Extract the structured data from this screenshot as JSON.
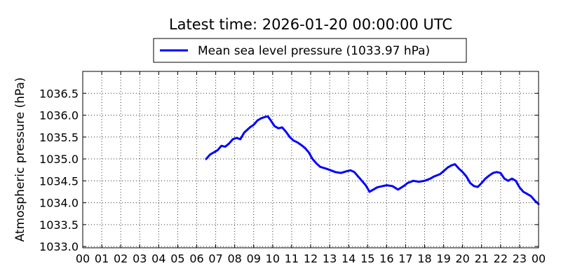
{
  "chart_data": {
    "type": "line",
    "title": "Latest time: 2026-01-20 00:00:00 UTC",
    "xlabel": "",
    "ylabel": "Atmospheric pressure (hPa)",
    "xlim": [
      0,
      24
    ],
    "ylim": [
      1032.97,
      1037.0
    ],
    "grid": true,
    "legend": {
      "placement": "top-center",
      "entries": [
        "Mean sea level pressure (1033.97 hPa)"
      ]
    },
    "x_tick_labels": [
      "00",
      "01",
      "02",
      "03",
      "04",
      "05",
      "06",
      "07",
      "08",
      "09",
      "10",
      "11",
      "12",
      "13",
      "14",
      "15",
      "16",
      "17",
      "18",
      "19",
      "20",
      "21",
      "22",
      "23",
      "00"
    ],
    "y_ticks": [
      1033.0,
      1033.5,
      1034.0,
      1034.5,
      1035.0,
      1035.5,
      1036.0,
      1036.5
    ],
    "y_tick_labels": [
      "1033.0",
      "1033.5",
      "1034.0",
      "1034.5",
      "1035.0",
      "1035.5",
      "1036.0",
      "1036.5"
    ],
    "series": [
      {
        "name": "Mean sea level pressure (1033.97 hPa)",
        "color": "#0000ff",
        "x": [
          6.5,
          6.7,
          6.9,
          7.1,
          7.3,
          7.5,
          7.7,
          7.9,
          8.1,
          8.3,
          8.5,
          8.8,
          9.0,
          9.2,
          9.4,
          9.6,
          9.75,
          9.9,
          10.1,
          10.3,
          10.5,
          10.7,
          10.9,
          11.1,
          11.3,
          11.5,
          11.7,
          11.9,
          12.1,
          12.3,
          12.5,
          12.8,
          13.0,
          13.3,
          13.6,
          13.9,
          14.1,
          14.3,
          14.5,
          14.7,
          14.9,
          15.1,
          15.3,
          15.5,
          15.8,
          16.0,
          16.3,
          16.6,
          16.9,
          17.1,
          17.4,
          17.7,
          18.0,
          18.3,
          18.5,
          18.8,
          19.0,
          19.2,
          19.4,
          19.6,
          19.8,
          20.0,
          20.2,
          20.4,
          20.6,
          20.8,
          21.0,
          21.2,
          21.4,
          21.6,
          21.8,
          22.0,
          22.2,
          22.4,
          22.6,
          22.8,
          23.0,
          23.2,
          23.4,
          23.6,
          23.8,
          24.0
        ],
        "y": [
          1035.0,
          1035.1,
          1035.15,
          1035.2,
          1035.3,
          1035.28,
          1035.35,
          1035.45,
          1035.48,
          1035.45,
          1035.6,
          1035.72,
          1035.78,
          1035.88,
          1035.93,
          1035.96,
          1035.97,
          1035.88,
          1035.75,
          1035.7,
          1035.72,
          1035.62,
          1035.5,
          1035.42,
          1035.38,
          1035.32,
          1035.25,
          1035.15,
          1035.0,
          1034.9,
          1034.82,
          1034.78,
          1034.75,
          1034.7,
          1034.68,
          1034.72,
          1034.74,
          1034.7,
          1034.6,
          1034.5,
          1034.4,
          1034.25,
          1034.3,
          1034.35,
          1034.38,
          1034.4,
          1034.38,
          1034.3,
          1034.38,
          1034.45,
          1034.5,
          1034.48,
          1034.5,
          1034.55,
          1034.6,
          1034.65,
          1034.72,
          1034.8,
          1034.85,
          1034.88,
          1034.78,
          1034.7,
          1034.6,
          1034.45,
          1034.38,
          1034.36,
          1034.45,
          1034.55,
          1034.62,
          1034.68,
          1034.7,
          1034.68,
          1034.55,
          1034.5,
          1034.55,
          1034.5,
          1034.35,
          1034.25,
          1034.2,
          1034.15,
          1034.05,
          1033.97
        ]
      }
    ]
  }
}
